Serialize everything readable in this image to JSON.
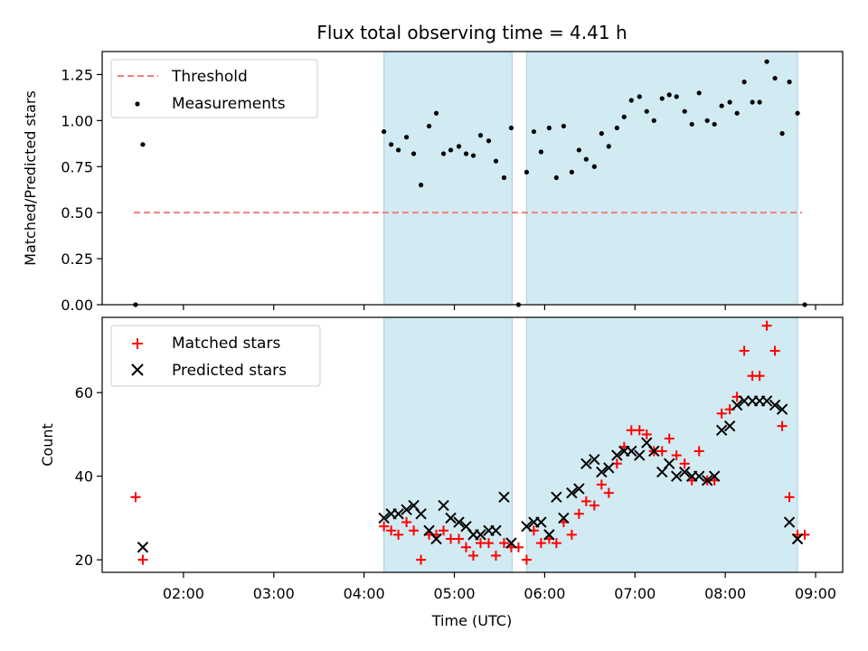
{
  "chart_data": [
    {
      "type": "scatter",
      "title": "Flux total observing time = 4.41 h",
      "xlabel": "",
      "ylabel": "Matched/Predicted stars",
      "ylim": [
        0,
        1.375
      ],
      "xlim_hours": [
        1.1,
        9.3
      ],
      "yticks": [
        {
          "v": 0,
          "label": "0.00"
        },
        {
          "v": 0.25,
          "label": "0.25"
        },
        {
          "v": 0.5,
          "label": "0.50"
        },
        {
          "v": 0.75,
          "label": "0.75"
        },
        {
          "v": 1.0,
          "label": "1.00"
        },
        {
          "v": 1.25,
          "label": "1.25"
        }
      ],
      "threshold": {
        "y": 0.5,
        "x": [
          1.45,
          8.85
        ]
      },
      "shaded_intervals_hours": [
        [
          4.22,
          5.64
        ],
        [
          5.8,
          8.8
        ]
      ],
      "legend": {
        "position": "upper-left",
        "entries": [
          "Threshold",
          "Measurements"
        ]
      },
      "series": [
        {
          "name": "Measurements",
          "marker": "dot",
          "color": "#000000",
          "points": [
            [
              1.47,
              0.0
            ],
            [
              1.55,
              0.87
            ],
            [
              4.22,
              0.94
            ],
            [
              4.3,
              0.87
            ],
            [
              4.38,
              0.84
            ],
            [
              4.47,
              0.91
            ],
            [
              4.55,
              0.82
            ],
            [
              4.63,
              0.65
            ],
            [
              4.72,
              0.97
            ],
            [
              4.8,
              1.04
            ],
            [
              4.88,
              0.82
            ],
            [
              4.96,
              0.84
            ],
            [
              5.05,
              0.86
            ],
            [
              5.13,
              0.82
            ],
            [
              5.21,
              0.81
            ],
            [
              5.29,
              0.92
            ],
            [
              5.38,
              0.89
            ],
            [
              5.46,
              0.78
            ],
            [
              5.55,
              0.69
            ],
            [
              5.63,
              0.96
            ],
            [
              5.71,
              0.0
            ],
            [
              5.8,
              0.72
            ],
            [
              5.88,
              0.94
            ],
            [
              5.96,
              0.83
            ],
            [
              6.05,
              0.96
            ],
            [
              6.13,
              0.69
            ],
            [
              6.21,
              0.97
            ],
            [
              6.3,
              0.72
            ],
            [
              6.38,
              0.84
            ],
            [
              6.46,
              0.79
            ],
            [
              6.55,
              0.75
            ],
            [
              6.63,
              0.93
            ],
            [
              6.71,
              0.86
            ],
            [
              6.8,
              0.96
            ],
            [
              6.88,
              1.02
            ],
            [
              6.96,
              1.11
            ],
            [
              7.05,
              1.13
            ],
            [
              7.13,
              1.05
            ],
            [
              7.21,
              1.0
            ],
            [
              7.3,
              1.12
            ],
            [
              7.38,
              1.14
            ],
            [
              7.46,
              1.13
            ],
            [
              7.55,
              1.05
            ],
            [
              7.63,
              0.98
            ],
            [
              7.71,
              1.15
            ],
            [
              7.8,
              1.0
            ],
            [
              7.88,
              0.98
            ],
            [
              7.96,
              1.08
            ],
            [
              8.05,
              1.1
            ],
            [
              8.13,
              1.04
            ],
            [
              8.21,
              1.21
            ],
            [
              8.3,
              1.1
            ],
            [
              8.38,
              1.1
            ],
            [
              8.46,
              1.32
            ],
            [
              8.55,
              1.23
            ],
            [
              8.63,
              0.93
            ],
            [
              8.71,
              1.21
            ],
            [
              8.8,
              1.04
            ],
            [
              8.88,
              0.0
            ]
          ]
        }
      ]
    },
    {
      "type": "scatter",
      "title": "",
      "xlabel": "Time (UTC)",
      "ylabel": "Count",
      "ylim": [
        17,
        78
      ],
      "xlim_hours": [
        1.1,
        9.3
      ],
      "yticks": [
        {
          "v": 20,
          "label": "20"
        },
        {
          "v": 40,
          "label": "40"
        },
        {
          "v": 60,
          "label": "60"
        }
      ],
      "xticks": [
        {
          "v": 2,
          "label": "02:00"
        },
        {
          "v": 3,
          "label": "03:00"
        },
        {
          "v": 4,
          "label": "04:00"
        },
        {
          "v": 5,
          "label": "05:00"
        },
        {
          "v": 6,
          "label": "06:00"
        },
        {
          "v": 7,
          "label": "07:00"
        },
        {
          "v": 8,
          "label": "08:00"
        },
        {
          "v": 9,
          "label": "09:00"
        }
      ],
      "shaded_intervals_hours": [
        [
          4.22,
          5.64
        ],
        [
          5.8,
          8.8
        ]
      ],
      "legend": {
        "position": "upper-left",
        "entries": [
          "Matched stars",
          "Predicted stars"
        ]
      },
      "series": [
        {
          "name": "Matched stars",
          "marker": "plus",
          "color": "#ff0000",
          "points": [
            [
              1.47,
              35
            ],
            [
              1.55,
              20
            ],
            [
              4.22,
              28
            ],
            [
              4.3,
              27
            ],
            [
              4.38,
              26
            ],
            [
              4.47,
              29
            ],
            [
              4.55,
              27
            ],
            [
              4.63,
              20
            ],
            [
              4.72,
              26
            ],
            [
              4.8,
              26
            ],
            [
              4.88,
              27
            ],
            [
              4.96,
              25
            ],
            [
              5.05,
              25
            ],
            [
              5.13,
              23
            ],
            [
              5.21,
              21
            ],
            [
              5.29,
              24
            ],
            [
              5.38,
              24
            ],
            [
              5.46,
              21
            ],
            [
              5.55,
              24
            ],
            [
              5.63,
              23
            ],
            [
              5.71,
              23
            ],
            [
              5.8,
              20
            ],
            [
              5.88,
              27
            ],
            [
              5.96,
              24
            ],
            [
              6.05,
              25
            ],
            [
              6.13,
              24
            ],
            [
              6.21,
              29
            ],
            [
              6.3,
              26
            ],
            [
              6.38,
              31
            ],
            [
              6.46,
              34
            ],
            [
              6.55,
              33
            ],
            [
              6.63,
              38
            ],
            [
              6.71,
              36
            ],
            [
              6.8,
              43
            ],
            [
              6.88,
              47
            ],
            [
              6.96,
              51
            ],
            [
              7.05,
              51
            ],
            [
              7.13,
              50
            ],
            [
              7.21,
              46
            ],
            [
              7.3,
              46
            ],
            [
              7.38,
              49
            ],
            [
              7.46,
              45
            ],
            [
              7.55,
              43
            ],
            [
              7.63,
              39
            ],
            [
              7.71,
              46
            ],
            [
              7.8,
              39
            ],
            [
              7.88,
              39
            ],
            [
              7.96,
              55
            ],
            [
              8.05,
              56
            ],
            [
              8.13,
              59
            ],
            [
              8.21,
              70
            ],
            [
              8.3,
              64
            ],
            [
              8.38,
              64
            ],
            [
              8.46,
              76
            ],
            [
              8.55,
              70
            ],
            [
              8.63,
              52
            ],
            [
              8.71,
              35
            ],
            [
              8.8,
              26
            ],
            [
              8.88,
              26
            ]
          ]
        },
        {
          "name": "Predicted stars",
          "marker": "x",
          "color": "#000000",
          "points": [
            [
              1.55,
              23
            ],
            [
              4.22,
              30
            ],
            [
              4.3,
              31
            ],
            [
              4.38,
              31
            ],
            [
              4.47,
              32
            ],
            [
              4.55,
              33
            ],
            [
              4.63,
              31
            ],
            [
              4.72,
              27
            ],
            [
              4.8,
              25
            ],
            [
              4.88,
              33
            ],
            [
              4.96,
              30
            ],
            [
              5.05,
              29
            ],
            [
              5.13,
              28
            ],
            [
              5.21,
              26
            ],
            [
              5.29,
              26
            ],
            [
              5.38,
              27
            ],
            [
              5.46,
              27
            ],
            [
              5.55,
              35
            ],
            [
              5.63,
              24
            ],
            [
              5.8,
              28
            ],
            [
              5.88,
              29
            ],
            [
              5.96,
              29
            ],
            [
              6.05,
              26
            ],
            [
              6.13,
              35
            ],
            [
              6.21,
              30
            ],
            [
              6.3,
              36
            ],
            [
              6.38,
              37
            ],
            [
              6.46,
              43
            ],
            [
              6.55,
              44
            ],
            [
              6.63,
              41
            ],
            [
              6.71,
              42
            ],
            [
              6.8,
              45
            ],
            [
              6.88,
              46
            ],
            [
              6.96,
              46
            ],
            [
              7.05,
              45
            ],
            [
              7.13,
              48
            ],
            [
              7.21,
              46
            ],
            [
              7.3,
              41
            ],
            [
              7.38,
              43
            ],
            [
              7.46,
              40
            ],
            [
              7.55,
              41
            ],
            [
              7.63,
              40
            ],
            [
              7.71,
              40
            ],
            [
              7.8,
              39
            ],
            [
              7.88,
              40
            ],
            [
              7.96,
              51
            ],
            [
              8.05,
              52
            ],
            [
              8.13,
              57
            ],
            [
              8.21,
              58
            ],
            [
              8.3,
              58
            ],
            [
              8.38,
              58
            ],
            [
              8.46,
              58
            ],
            [
              8.55,
              57
            ],
            [
              8.63,
              56
            ],
            [
              8.71,
              29
            ],
            [
              8.8,
              25
            ]
          ]
        }
      ]
    }
  ],
  "colors": {
    "shade": "#add8e6",
    "threshold": "#f08080",
    "matched": "#ff0000",
    "predicted": "#000000"
  }
}
